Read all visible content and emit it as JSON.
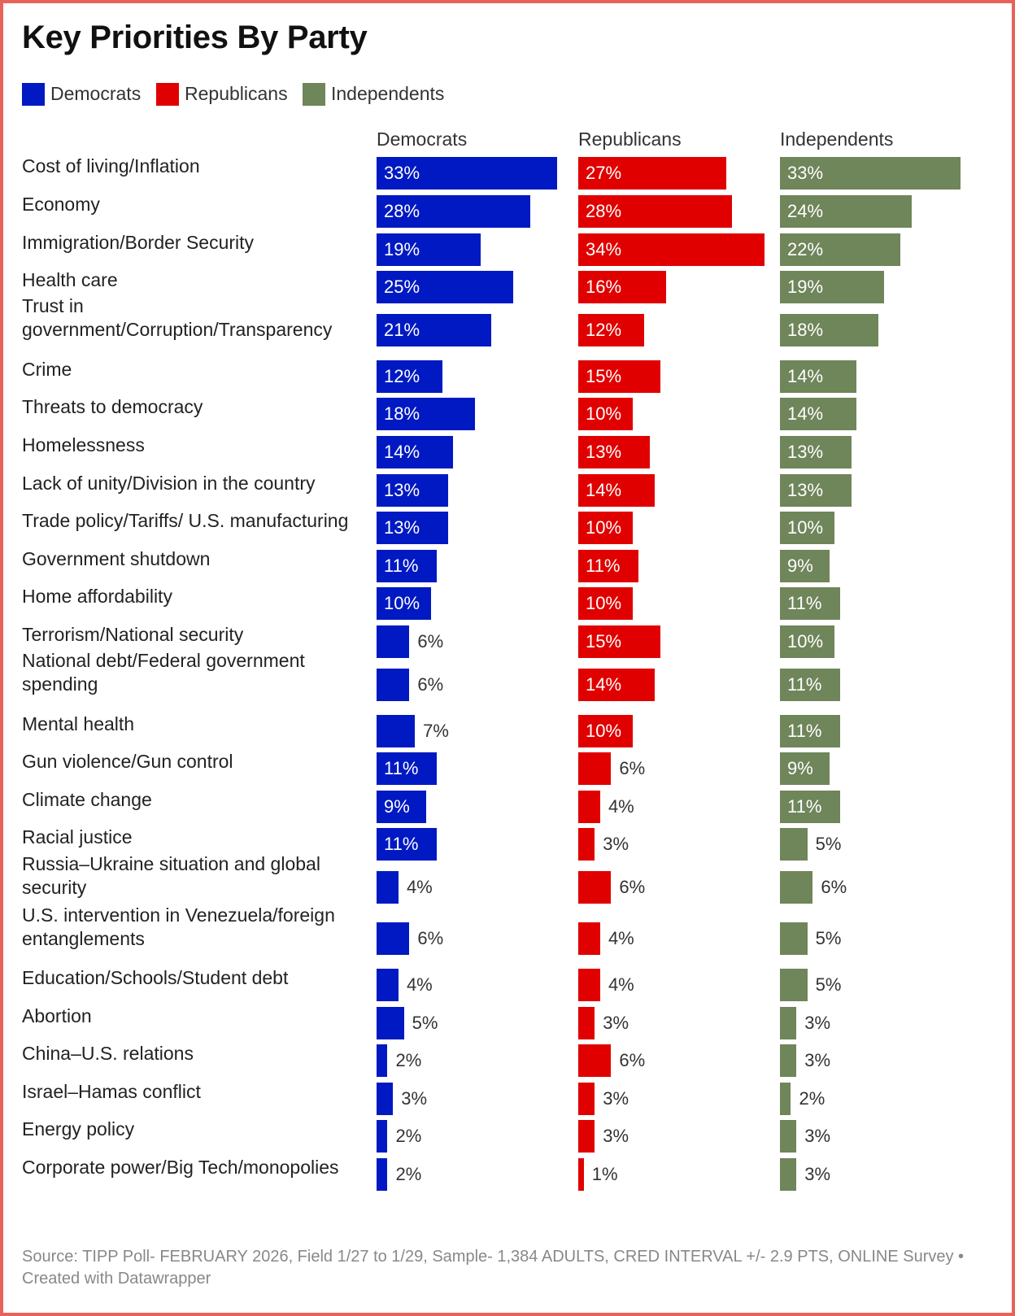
{
  "title": "Key Priorities By Party",
  "legend": [
    {
      "label": "Democrats",
      "color": "#0019c2"
    },
    {
      "label": "Republicans",
      "color": "#e00000"
    },
    {
      "label": "Independents",
      "color": "#6f855a"
    }
  ],
  "footer": "Source: TIPP Poll- FEBRUARY 2026, Field 1/27 to 1/29, Sample- 1,384 ADULTS, CRED INTERVAL +/- 2.9 PTS, ONLINE Survey • Created with Datawrapper",
  "chart_data": {
    "type": "bar",
    "orientation": "horizontal",
    "title": "Key Priorities By Party",
    "unit": "%",
    "xlim": [
      0,
      34
    ],
    "categories": [
      "Cost of living/Inflation",
      "Economy",
      "Immigration/Border Security",
      "Health care",
      "Trust in government/Corruption/Transparency",
      "Crime",
      "Threats to democracy",
      "Homelessness",
      "Lack of unity/Division in the country",
      "Trade policy/Tariffs/ U.S. manufacturing",
      "Government shutdown",
      "Home affordability",
      "Terrorism/National security",
      "National debt/Federal government spending",
      "Mental health",
      "Gun violence/Gun control",
      "Climate change",
      "Racial justice",
      "Russia–Ukraine situation and global security",
      "U.S. intervention in Venezuela/foreign entanglements",
      "Education/Schools/Student debt",
      "Abortion",
      "China–U.S. relations",
      "Israel–Hamas conflict",
      "Energy policy",
      "Corporate power/Big Tech/monopolies"
    ],
    "series": [
      {
        "name": "Democrats",
        "color": "#0019c2",
        "values": [
          33,
          28,
          19,
          25,
          21,
          12,
          18,
          14,
          13,
          13,
          11,
          10,
          6,
          6,
          7,
          11,
          9,
          11,
          4,
          6,
          4,
          5,
          2,
          3,
          2,
          2
        ]
      },
      {
        "name": "Republicans",
        "color": "#e00000",
        "values": [
          27,
          28,
          34,
          16,
          12,
          15,
          10,
          13,
          14,
          10,
          11,
          10,
          15,
          14,
          10,
          6,
          4,
          3,
          6,
          4,
          4,
          3,
          6,
          3,
          3,
          1
        ]
      },
      {
        "name": "Independents",
        "color": "#6f855a",
        "values": [
          33,
          24,
          22,
          19,
          18,
          14,
          14,
          13,
          13,
          10,
          9,
          11,
          10,
          11,
          11,
          9,
          11,
          5,
          6,
          5,
          5,
          3,
          3,
          2,
          3,
          3
        ]
      }
    ]
  }
}
